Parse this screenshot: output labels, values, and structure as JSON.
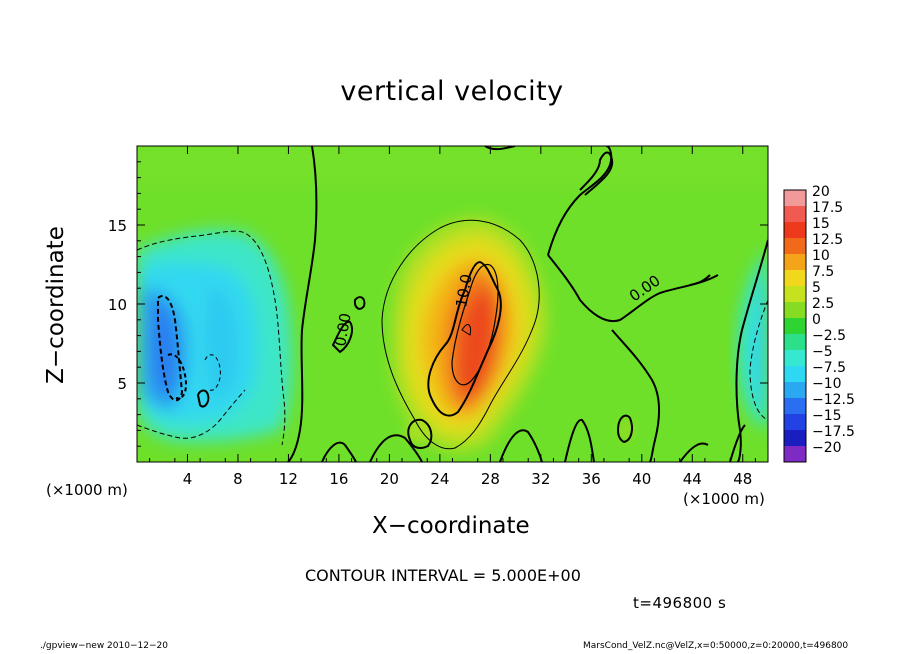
{
  "chart_data": {
    "type": "heatmap",
    "title": "vertical velocity",
    "xlabel": "X−coordinate",
    "ylabel": "Z−coordinate",
    "x_unit_label": "(×1000 m)",
    "xlim": [
      0,
      50
    ],
    "ylim": [
      0,
      20
    ],
    "x_ticks": [
      4,
      8,
      12,
      16,
      20,
      24,
      28,
      32,
      36,
      40,
      44,
      48
    ],
    "y_ticks": [
      5,
      10,
      15
    ],
    "colorbar": {
      "levels": [
        "20",
        "17.5",
        "15",
        "12.5",
        "10",
        "7.5",
        "5",
        "2.5",
        "0",
        "−2.5",
        "−5",
        "−7.5",
        "−10",
        "−12.5",
        "−15",
        "−17.5",
        "−20"
      ],
      "colors": [
        "#f29a9a",
        "#f05a50",
        "#ee3a1c",
        "#f06a1a",
        "#f4a418",
        "#f2d81c",
        "#c6e21e",
        "#86dc22",
        "#2ed432",
        "#2ce08a",
        "#36e8d0",
        "#2ed8f2",
        "#2aa8f2",
        "#2a6ef2",
        "#2242e4",
        "#1a1ec0",
        "#7e2ac4"
      ]
    },
    "contour_labels": [
      "10.0",
      "0.00",
      "0.00"
    ],
    "contour_interval": "CONTOUR INTERVAL = 5.000E+00",
    "time": "t=496800 s",
    "background_value_color": "#6ee02a"
  },
  "footer": {
    "left": "./gpview−new  2010−12−20",
    "right": "MarsCond_VelZ.nc@VelZ,x=0:50000,z=0:20000,t=496800"
  }
}
